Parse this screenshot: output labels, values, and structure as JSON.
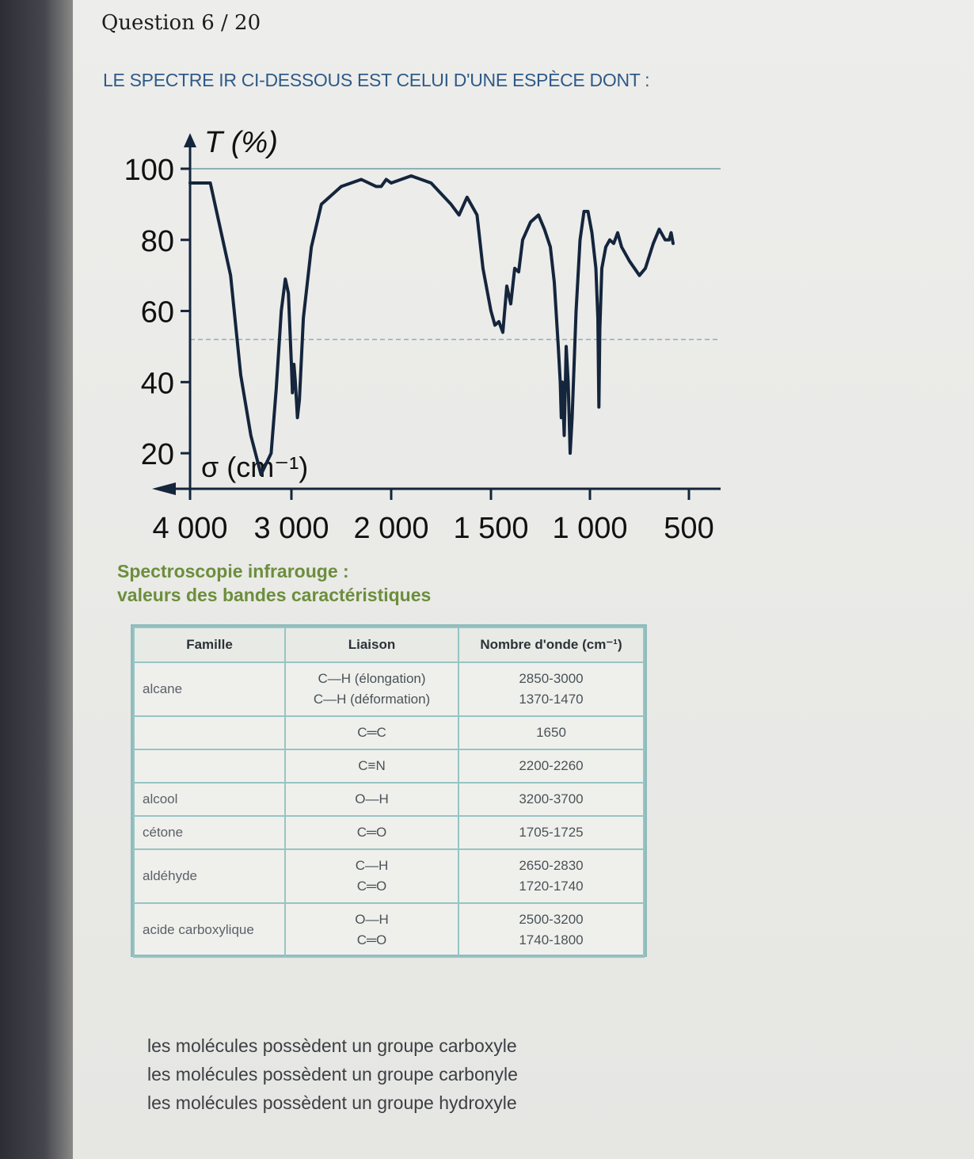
{
  "question": {
    "label": "Question 6 / 20",
    "prompt": "LE SPECTRE IR CI-DESSOUS EST CELUI D'UNE ESPÈCE DONT :"
  },
  "chart_data": {
    "type": "line",
    "title": "",
    "xlabel": "σ (cm⁻¹)",
    "ylabel": "T (%)",
    "x_ticks": [
      "4 000",
      "3 000",
      "2 000",
      "1 500",
      "1 000",
      "500"
    ],
    "y_ticks": [
      "100",
      "80",
      "60",
      "40",
      "20"
    ],
    "ylim": [
      10,
      100
    ],
    "x_reversed": true,
    "grid": false,
    "reference_lines": [
      100,
      52
    ],
    "series": [
      {
        "name": "",
        "points": [
          [
            4000,
            96
          ],
          [
            3800,
            96
          ],
          [
            3600,
            70
          ],
          [
            3500,
            42
          ],
          [
            3400,
            25
          ],
          [
            3300,
            14
          ],
          [
            3200,
            20
          ],
          [
            3150,
            38
          ],
          [
            3100,
            60
          ],
          [
            3060,
            69
          ],
          [
            3030,
            65
          ],
          [
            3000,
            45
          ],
          [
            2990,
            37
          ],
          [
            2975,
            45
          ],
          [
            2960,
            40
          ],
          [
            2940,
            30
          ],
          [
            2920,
            35
          ],
          [
            2880,
            58
          ],
          [
            2800,
            78
          ],
          [
            2700,
            90
          ],
          [
            2500,
            95
          ],
          [
            2300,
            97
          ],
          [
            2150,
            95
          ],
          [
            2100,
            95
          ],
          [
            2050,
            97
          ],
          [
            2000,
            96
          ],
          [
            1900,
            98
          ],
          [
            1800,
            96
          ],
          [
            1700,
            90
          ],
          [
            1660,
            87
          ],
          [
            1620,
            92
          ],
          [
            1570,
            87
          ],
          [
            1540,
            72
          ],
          [
            1500,
            60
          ],
          [
            1480,
            56
          ],
          [
            1460,
            57
          ],
          [
            1440,
            54
          ],
          [
            1420,
            67
          ],
          [
            1400,
            62
          ],
          [
            1380,
            72
          ],
          [
            1360,
            71
          ],
          [
            1340,
            80
          ],
          [
            1300,
            85
          ],
          [
            1260,
            87
          ],
          [
            1230,
            83
          ],
          [
            1200,
            78
          ],
          [
            1180,
            68
          ],
          [
            1160,
            50
          ],
          [
            1150,
            40
          ],
          [
            1145,
            30
          ],
          [
            1140,
            40
          ],
          [
            1130,
            25
          ],
          [
            1120,
            50
          ],
          [
            1110,
            40
          ],
          [
            1100,
            20
          ],
          [
            1090,
            30
          ],
          [
            1070,
            60
          ],
          [
            1050,
            80
          ],
          [
            1030,
            88
          ],
          [
            1010,
            88
          ],
          [
            990,
            82
          ],
          [
            970,
            72
          ],
          [
            960,
            58
          ],
          [
            955,
            33
          ],
          [
            950,
            55
          ],
          [
            940,
            72
          ],
          [
            920,
            78
          ],
          [
            900,
            80
          ],
          [
            880,
            79
          ],
          [
            860,
            82
          ],
          [
            840,
            78
          ],
          [
            800,
            74
          ],
          [
            750,
            70
          ],
          [
            720,
            72
          ],
          [
            680,
            79
          ],
          [
            650,
            83
          ],
          [
            620,
            80
          ],
          [
            600,
            80
          ],
          [
            590,
            82
          ],
          [
            580,
            79
          ]
        ]
      }
    ]
  },
  "table_title": [
    "Spectroscopie infrarouge :",
    "valeurs des bandes caractéristiques"
  ],
  "table": {
    "headers": [
      "Famille",
      "Liaison",
      "Nombre d'onde (cm⁻¹)"
    ],
    "rows": [
      {
        "famille": "alcane",
        "liaison": [
          "C—H (élongation)",
          "C—H (déformation)"
        ],
        "nombre": [
          "2850-3000",
          "1370-1470"
        ]
      },
      {
        "famille": "",
        "liaison": [
          "C═C"
        ],
        "nombre": [
          "1650"
        ]
      },
      {
        "famille": "",
        "liaison": [
          "C≡N"
        ],
        "nombre": [
          "2200-2260"
        ]
      },
      {
        "famille": "alcool",
        "liaison": [
          "O—H"
        ],
        "nombre": [
          "3200-3700"
        ]
      },
      {
        "famille": "cétone",
        "liaison": [
          "C═O"
        ],
        "nombre": [
          "1705-1725"
        ]
      },
      {
        "famille": "aldéhyde",
        "liaison": [
          "C—H",
          "C═O"
        ],
        "nombre": [
          "2650-2830",
          "1720-1740"
        ]
      },
      {
        "famille": "acide carboxylique",
        "liaison": [
          "O—H",
          "C═O"
        ],
        "nombre": [
          "2500-3200",
          "1740-1800"
        ]
      }
    ]
  },
  "options": [
    "les molécules possèdent un groupe carboxyle",
    "les molécules possèdent un groupe carbonyle",
    "les molécules possèdent un groupe hydroxyle"
  ],
  "colors": {
    "prompt": "#2e5a88",
    "table_title": "#6c8e3c",
    "table_border": "#8fbcbc",
    "curve": "#14253c"
  }
}
